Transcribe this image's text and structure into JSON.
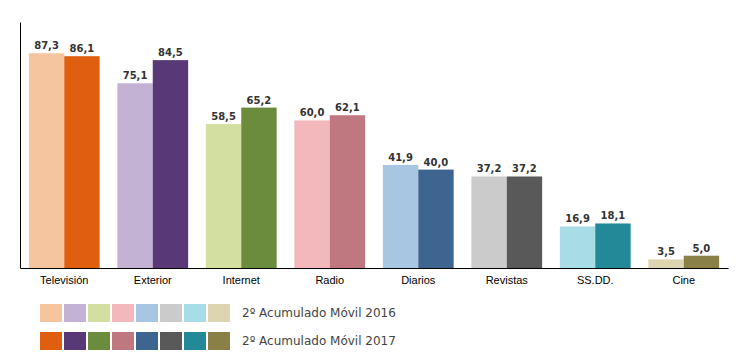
{
  "chart_data": {
    "type": "bar",
    "categories": [
      "Televisión",
      "Exterior",
      "Internet",
      "Radio",
      "Diarios",
      "Revistas",
      "SS.DD.",
      "Cine"
    ],
    "series": [
      {
        "name": "2º Acumulado Móvil 2016",
        "values": [
          87.3,
          75.1,
          58.5,
          60.0,
          41.9,
          37.2,
          16.9,
          3.5
        ],
        "value_labels": [
          "87,3",
          "75,1",
          "58,5",
          "60,0",
          "41,9",
          "37,2",
          "16,9",
          "3,5"
        ],
        "colors": [
          "#f5c5a0",
          "#c4b2d5",
          "#d2dfa0",
          "#f2b8bc",
          "#a8c5e2",
          "#cbcbcb",
          "#a8dde8",
          "#ddd5b0"
        ]
      },
      {
        "name": "2º Acumulado Móvil 2017",
        "values": [
          86.1,
          84.5,
          65.2,
          62.1,
          40.0,
          37.2,
          18.1,
          5.0
        ],
        "value_labels": [
          "86,1",
          "84,5",
          "65,2",
          "62,1",
          "40,0",
          "37,2",
          "18,1",
          "5,0"
        ],
        "colors": [
          "#e05e10",
          "#593878",
          "#6a8c3c",
          "#c07880",
          "#3e6490",
          "#595959",
          "#238898",
          "#898048"
        ]
      }
    ],
    "ylim": [
      0,
      100
    ],
    "data_labels": true,
    "tick_labels": "x",
    "grid": false,
    "legend": "bottom"
  }
}
